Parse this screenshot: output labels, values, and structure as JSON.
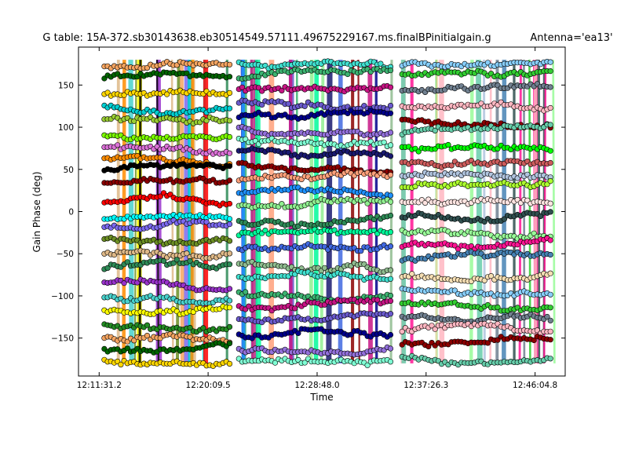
{
  "chart_data": {
    "type": "scatter",
    "title": "G table: 15A-372.sb30143638.eb30514549.57111.49675229167.ms.finalBPinitialgain.g",
    "subtitle": "Antenna='ea13'",
    "xlabel": "Time",
    "ylabel": "Gain Phase (deg)",
    "x_ticks": [
      "12:11:31.2",
      "12:20:09.5",
      "12:28:48.0",
      "12:37:26.3",
      "12:46:04.8"
    ],
    "y_ticks": [
      -150,
      -100,
      -50,
      0,
      50,
      100,
      150
    ],
    "ylim": [
      -195,
      195
    ],
    "grid": false,
    "x_range": [
      "12:09:53",
      "12:48:28"
    ],
    "scan_blocks": [
      {
        "start": "12:11:41",
        "end": "12:22:11",
        "phase_bands": [
          172,
          158,
          140,
          123,
          107,
          92,
          78,
          63,
          47,
          31,
          12,
          -8,
          -20,
          -32,
          -50,
          -66,
          -84,
          -100,
          -118,
          -134,
          -150,
          -165,
          -176
        ],
        "colors": [
          "#f4a460",
          "#006400",
          "#ffd700",
          "#00ced1",
          "#9acd32",
          "#7cfc00",
          "#da70d6",
          "#ff8c00",
          "#000000",
          "#8b0000",
          "#ff0000",
          "#00ffff",
          "#7b68ee",
          "#6b8e23",
          "#deb887",
          "#2e8b57",
          "#9932cc",
          "#48d1cc",
          "#ffff00",
          "#228b22"
        ]
      },
      {
        "start": "12:22:21",
        "end": "12:35:07",
        "phase_bands": [
          174,
          160,
          145,
          130,
          115,
          100,
          86,
          72,
          55,
          38,
          22,
          5,
          -12,
          -28,
          -45,
          -62,
          -80,
          -97,
          -113,
          -130,
          -147,
          -163,
          -177
        ],
        "colors": [
          "#40e0d0",
          "#3cb371",
          "#c71585",
          "#6a5acd",
          "#00008b",
          "#9370db",
          "#7fffd4",
          "#191970",
          "#8b0000",
          "#ffa07a",
          "#1e90ff",
          "#90ee90",
          "#2e8b57",
          "#00fa9a",
          "#4169e1",
          "#8fbc8f"
        ]
      },
      {
        "start": "12:35:17",
        "end": "12:47:46",
        "phase_bands": [
          175,
          160,
          142,
          125,
          108,
          93,
          78,
          60,
          44,
          28,
          10,
          -5,
          -22,
          -40,
          -58,
          -76,
          -92,
          -108,
          -125,
          -142,
          -158,
          -172
        ],
        "colors": [
          "#87cefa",
          "#32cd32",
          "#708090",
          "#ffb6c1",
          "#8b0000",
          "#66cdaa",
          "#00ff00",
          "#cd5c5c",
          "#b0c4de",
          "#adff2f",
          "#ffe4e1",
          "#2f4f4f",
          "#98fb98",
          "#ff1493",
          "#4682b4",
          "#f5deb3"
        ]
      }
    ]
  }
}
